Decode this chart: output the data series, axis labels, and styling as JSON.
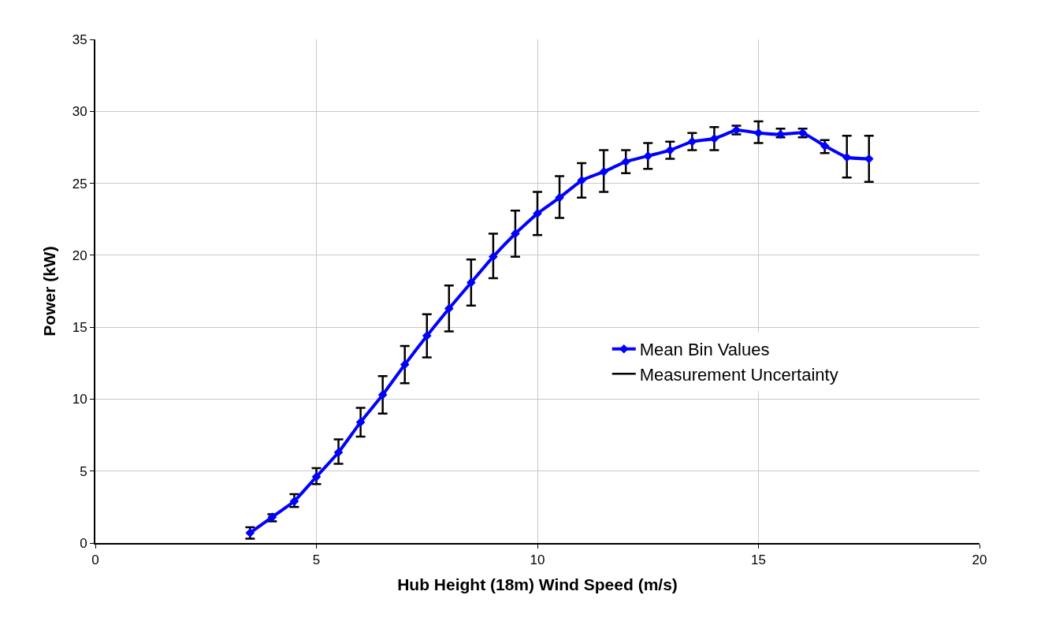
{
  "chart_data": {
    "type": "line",
    "xlabel": "Hub Height (18m) Wind Speed (m/s)",
    "ylabel": "Power (kW)",
    "x": [
      3.5,
      4,
      4.5,
      5,
      5.5,
      6,
      6.5,
      7,
      7.5,
      8,
      8.5,
      9,
      9.5,
      10,
      10.5,
      11,
      11.5,
      12,
      12.5,
      13,
      13.5,
      14,
      14.5,
      15,
      15.5,
      16,
      16.5,
      17,
      17.5
    ],
    "series": [
      {
        "name": "Mean Bin Values",
        "type": "line",
        "color": "#0000ff",
        "marker": "diamond",
        "values": [
          0.7,
          1.8,
          2.9,
          4.6,
          6.3,
          8.4,
          10.3,
          12.4,
          14.4,
          16.3,
          18.1,
          19.9,
          21.5,
          22.9,
          24.0,
          25.2,
          25.8,
          26.5,
          26.9,
          27.3,
          27.9,
          28.1,
          28.7,
          28.5,
          28.4,
          28.5,
          27.6,
          26.8,
          26.7
        ],
        "errors": [
          [
            0.3,
            1.1
          ],
          [
            1.5,
            2.0
          ],
          [
            2.5,
            3.4
          ],
          [
            4.1,
            5.2
          ],
          [
            5.5,
            7.2
          ],
          [
            7.4,
            9.4
          ],
          [
            9.0,
            11.6
          ],
          [
            11.1,
            13.7
          ],
          [
            12.9,
            15.9
          ],
          [
            14.7,
            17.9
          ],
          [
            16.5,
            19.7
          ],
          [
            18.4,
            21.5
          ],
          [
            19.9,
            23.1
          ],
          [
            21.4,
            24.4
          ],
          [
            22.6,
            25.5
          ],
          [
            24.0,
            26.4
          ],
          [
            24.4,
            27.3
          ],
          [
            25.7,
            27.3
          ],
          [
            26.0,
            27.8
          ],
          [
            26.7,
            27.9
          ],
          [
            27.3,
            28.5
          ],
          [
            27.3,
            28.9
          ],
          [
            28.4,
            29.0
          ],
          [
            27.8,
            29.3
          ],
          [
            28.2,
            28.8
          ],
          [
            28.2,
            28.8
          ],
          [
            27.1,
            28.0
          ],
          [
            25.4,
            28.3
          ],
          [
            25.1,
            28.3
          ]
        ]
      },
      {
        "name": "Measurement Uncertainty",
        "type": "line",
        "color": "#000000",
        "values": [
          null,
          null,
          null,
          null,
          null,
          null,
          null,
          null,
          null,
          null,
          null,
          null,
          null,
          null,
          null,
          null,
          null,
          null,
          null,
          null,
          null,
          null,
          null,
          null,
          null,
          null,
          null,
          null,
          null
        ]
      }
    ],
    "xlim": [
      0,
      20
    ],
    "xticks": [
      0,
      5,
      10,
      15,
      20
    ],
    "ylim": [
      0,
      35
    ],
    "yticks": [
      0,
      5,
      10,
      15,
      20,
      25,
      30,
      35
    ],
    "grid": true,
    "legend": "right"
  }
}
